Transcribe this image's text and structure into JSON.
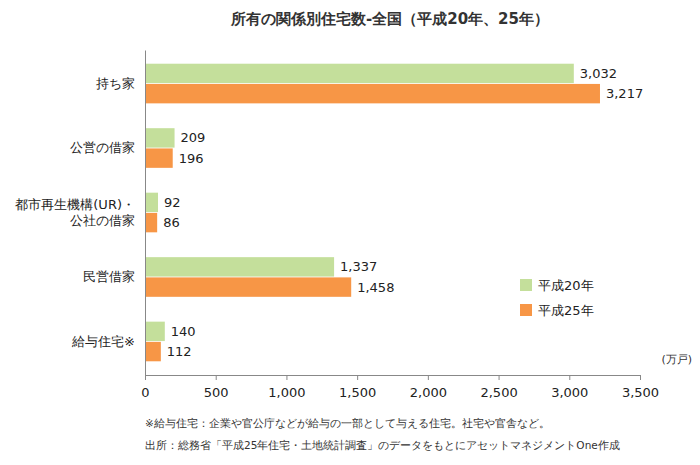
{
  "chart_data": {
    "type": "bar",
    "orientation": "horizontal",
    "title": "所有の関係別住宅数-全国（平成20年、25年）",
    "xlabel": "(万戸)",
    "categories": [
      "持ち家",
      "公営の借家",
      "都市再生機構(UR)・公社の借家",
      "民営借家",
      "給与住宅※"
    ],
    "series": [
      {
        "name": "平成20年",
        "color": "#c4df9b",
        "values": [
          3032,
          209,
          92,
          1337,
          140
        ],
        "value_labels": [
          "3,032",
          "209",
          "92",
          "1,337",
          "140"
        ]
      },
      {
        "name": "平成25年",
        "color": "#f79646",
        "values": [
          3217,
          196,
          86,
          1458,
          112
        ],
        "value_labels": [
          "3,217",
          "196",
          "86",
          "1,458",
          "112"
        ]
      }
    ],
    "xlim": [
      0,
      3500
    ],
    "xticks": [
      0,
      500,
      {
        "value": 1000,
        "label": "1,000"
      },
      {
        "value": 1500,
        "label": "1,500"
      },
      {
        "value": 2000,
        "label": "2,000"
      },
      {
        "value": 2500,
        "label": "2,500"
      },
      {
        "value": 3000,
        "label": "3,000"
      },
      {
        "value": 3500,
        "label": "3,500"
      }
    ],
    "grid": false,
    "legend": "lower right",
    "data_labels": true,
    "notes": [
      "※給与住宅：企業や官公庁などが給与の一部として与える住宅。社宅や官舎など。",
      "出所：総務省「平成25年住宅・土地統計調査」のデータをもとにアセットマネジメントOne作成"
    ]
  }
}
